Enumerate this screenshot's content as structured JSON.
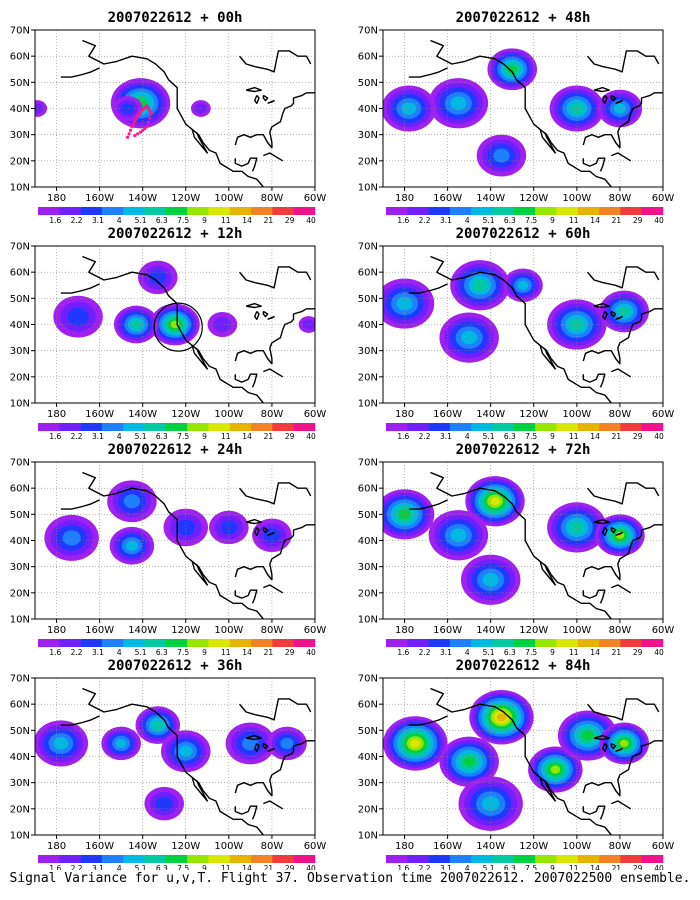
{
  "caption": "Signal Variance for u,v,T. Flight 37. Observation time 2007022612. 2007022500 ensemble.",
  "colorbar": {
    "levels": [
      "1.6",
      "2.2",
      "3.1",
      "4",
      "5.1",
      "6.3",
      "7.5",
      "9",
      "11",
      "14",
      "21",
      "29",
      "40"
    ],
    "colors": [
      "#a020f0",
      "#7020ff",
      "#2038ff",
      "#1e80ff",
      "#00b8e0",
      "#00c8a0",
      "#00d040",
      "#96e600",
      "#dce600",
      "#e6b400",
      "#f08228",
      "#f03c3c",
      "#f0148c"
    ]
  },
  "axes": {
    "x_ticks": [
      "180",
      "160W",
      "140W",
      "120W",
      "100W",
      "80W",
      "60W"
    ],
    "y_ticks": [
      "10N",
      "20N",
      "30N",
      "40N",
      "50N",
      "60N",
      "70N"
    ]
  },
  "chart_data": [
    {
      "type": "heatmap",
      "title": "2007022612 + 00h",
      "forecast_hour": 0,
      "xlim": [
        -190,
        -60
      ],
      "ylim": [
        10,
        70
      ],
      "max_level": "9",
      "annotation": "dotted flight track",
      "blobs": [
        {
          "lon": -141,
          "lat": 42,
          "r": 12,
          "level": 6
        },
        {
          "lon": -147,
          "lat": 40,
          "r": 6,
          "level": 2
        },
        {
          "lon": -189,
          "lat": 40,
          "r": 4,
          "level": 1
        },
        {
          "lon": -113,
          "lat": 40,
          "r": 4,
          "level": 1
        }
      ]
    },
    {
      "type": "heatmap",
      "title": "2007022612 + 12h",
      "forecast_hour": 12,
      "xlim": [
        -190,
        -60
      ],
      "ylim": [
        10,
        70
      ],
      "max_level": "11",
      "annotation": "circle near 125W 38N",
      "blobs": [
        {
          "lon": -125,
          "lat": 40,
          "r": 10,
          "level": 7
        },
        {
          "lon": -143,
          "lat": 40,
          "r": 9,
          "level": 5
        },
        {
          "lon": -170,
          "lat": 43,
          "r": 10,
          "level": 2
        },
        {
          "lon": -133,
          "lat": 58,
          "r": 8,
          "level": 2
        },
        {
          "lon": -103,
          "lat": 40,
          "r": 6,
          "level": 1
        },
        {
          "lon": -63,
          "lat": 40,
          "r": 4,
          "level": 1
        }
      ]
    },
    {
      "type": "heatmap",
      "title": "2007022612 + 24h",
      "forecast_hour": 24,
      "xlim": [
        -190,
        -60
      ],
      "ylim": [
        10,
        70
      ],
      "max_level": "7.5",
      "blobs": [
        {
          "lon": -145,
          "lat": 55,
          "r": 10,
          "level": 3
        },
        {
          "lon": -145,
          "lat": 38,
          "r": 9,
          "level": 4
        },
        {
          "lon": -173,
          "lat": 41,
          "r": 11,
          "level": 3
        },
        {
          "lon": -120,
          "lat": 45,
          "r": 9,
          "level": 2
        },
        {
          "lon": -100,
          "lat": 45,
          "r": 8,
          "level": 2
        },
        {
          "lon": -80,
          "lat": 42,
          "r": 8,
          "level": 2
        }
      ]
    },
    {
      "type": "heatmap",
      "title": "2007022612 + 36h",
      "forecast_hour": 36,
      "xlim": [
        -190,
        -60
      ],
      "ylim": [
        10,
        70
      ],
      "max_level": "9",
      "blobs": [
        {
          "lon": -133,
          "lat": 52,
          "r": 9,
          "level": 5
        },
        {
          "lon": -120,
          "lat": 42,
          "r": 10,
          "level": 4
        },
        {
          "lon": -178,
          "lat": 45,
          "r": 11,
          "level": 4
        },
        {
          "lon": -150,
          "lat": 45,
          "r": 8,
          "level": 4
        },
        {
          "lon": -90,
          "lat": 45,
          "r": 10,
          "level": 3
        },
        {
          "lon": -73,
          "lat": 45,
          "r": 8,
          "level": 3
        },
        {
          "lon": -130,
          "lat": 22,
          "r": 8,
          "level": 2
        }
      ]
    },
    {
      "type": "heatmap",
      "title": "2007022612 + 48h",
      "forecast_hour": 48,
      "xlim": [
        -190,
        -60
      ],
      "ylim": [
        10,
        70
      ],
      "max_level": "11",
      "blobs": [
        {
          "lon": -130,
          "lat": 55,
          "r": 10,
          "level": 6
        },
        {
          "lon": -155,
          "lat": 42,
          "r": 12,
          "level": 4
        },
        {
          "lon": -178,
          "lat": 40,
          "r": 11,
          "level": 4
        },
        {
          "lon": -100,
          "lat": 40,
          "r": 11,
          "level": 5
        },
        {
          "lon": -80,
          "lat": 40,
          "r": 9,
          "level": 4
        },
        {
          "lon": -135,
          "lat": 22,
          "r": 10,
          "level": 3
        }
      ]
    },
    {
      "type": "heatmap",
      "title": "2007022612 + 60h",
      "forecast_hour": 60,
      "xlim": [
        -190,
        -60
      ],
      "ylim": [
        10,
        70
      ],
      "max_level": "11",
      "blobs": [
        {
          "lon": -145,
          "lat": 55,
          "r": 12,
          "level": 5
        },
        {
          "lon": -180,
          "lat": 48,
          "r": 12,
          "level": 4
        },
        {
          "lon": -150,
          "lat": 35,
          "r": 12,
          "level": 4
        },
        {
          "lon": -100,
          "lat": 40,
          "r": 12,
          "level": 5
        },
        {
          "lon": -78,
          "lat": 45,
          "r": 10,
          "level": 5
        },
        {
          "lon": -125,
          "lat": 55,
          "r": 8,
          "level": 4
        }
      ]
    },
    {
      "type": "heatmap",
      "title": "2007022612 + 72h",
      "forecast_hour": 72,
      "xlim": [
        -190,
        -60
      ],
      "ylim": [
        10,
        70
      ],
      "max_level": "14",
      "blobs": [
        {
          "lon": -138,
          "lat": 55,
          "r": 12,
          "level": 8
        },
        {
          "lon": -180,
          "lat": 50,
          "r": 12,
          "level": 6
        },
        {
          "lon": -155,
          "lat": 42,
          "r": 12,
          "level": 4
        },
        {
          "lon": -100,
          "lat": 45,
          "r": 12,
          "level": 5
        },
        {
          "lon": -80,
          "lat": 42,
          "r": 10,
          "level": 7
        },
        {
          "lon": -140,
          "lat": 25,
          "r": 12,
          "level": 4
        }
      ]
    },
    {
      "type": "heatmap",
      "title": "2007022612 + 84h",
      "forecast_hour": 84,
      "xlim": [
        -190,
        -60
      ],
      "ylim": [
        10,
        70
      ],
      "max_level": "14",
      "blobs": [
        {
          "lon": -135,
          "lat": 55,
          "r": 13,
          "level": 9
        },
        {
          "lon": -175,
          "lat": 45,
          "r": 13,
          "level": 8
        },
        {
          "lon": -150,
          "lat": 38,
          "r": 12,
          "level": 6
        },
        {
          "lon": -110,
          "lat": 35,
          "r": 11,
          "level": 7
        },
        {
          "lon": -95,
          "lat": 48,
          "r": 12,
          "level": 6
        },
        {
          "lon": -78,
          "lat": 45,
          "r": 10,
          "level": 7
        },
        {
          "lon": -140,
          "lat": 22,
          "r": 13,
          "level": 4
        }
      ]
    }
  ]
}
